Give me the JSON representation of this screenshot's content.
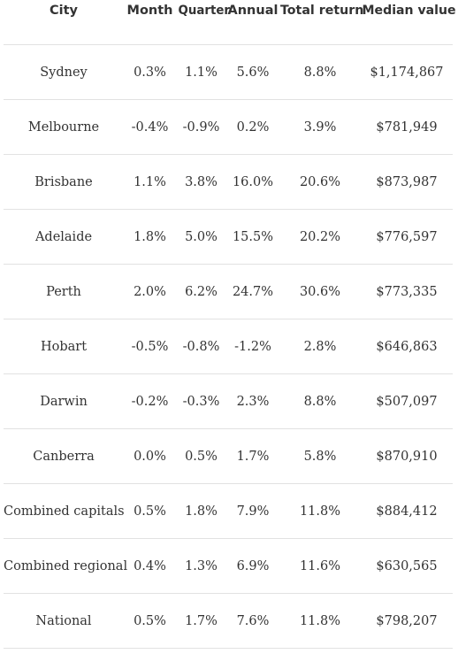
{
  "table": {
    "headers": [
      "City",
      "Month",
      "Quarter",
      "Annual",
      "Total return",
      "Median value"
    ],
    "rows": [
      {
        "city": "Sydney",
        "month": "0.3%",
        "quarter": "1.1%",
        "annual": "5.6%",
        "total_return": "8.8%",
        "median_value": "$1,174,867"
      },
      {
        "city": "Melbourne",
        "month": "-0.4%",
        "quarter": "-0.9%",
        "annual": "0.2%",
        "total_return": "3.9%",
        "median_value": "$781,949"
      },
      {
        "city": "Brisbane",
        "month": "1.1%",
        "quarter": "3.8%",
        "annual": "16.0%",
        "total_return": "20.6%",
        "median_value": "$873,987"
      },
      {
        "city": "Adelaide",
        "month": "1.8%",
        "quarter": "5.0%",
        "annual": "15.5%",
        "total_return": "20.2%",
        "median_value": "$776,597"
      },
      {
        "city": "Perth",
        "month": "2.0%",
        "quarter": "6.2%",
        "annual": "24.7%",
        "total_return": "30.6%",
        "median_value": "$773,335"
      },
      {
        "city": "Hobart",
        "month": "-0.5%",
        "quarter": "-0.8%",
        "annual": "-1.2%",
        "total_return": "2.8%",
        "median_value": "$646,863"
      },
      {
        "city": "Darwin",
        "month": "-0.2%",
        "quarter": "-0.3%",
        "annual": "2.3%",
        "total_return": "8.8%",
        "median_value": "$507,097"
      },
      {
        "city": "Canberra",
        "month": "0.0%",
        "quarter": "0.5%",
        "annual": "1.7%",
        "total_return": "5.8%",
        "median_value": "$870,910"
      },
      {
        "city": "Combined capitals",
        "month": "0.5%",
        "quarter": "1.8%",
        "annual": "7.9%",
        "total_return": "11.8%",
        "median_value": "$884,412"
      },
      {
        "city": "Combined regional",
        "month": "0.4%",
        "quarter": "1.3%",
        "annual": "6.9%",
        "total_return": "11.6%",
        "median_value": "$630,565"
      },
      {
        "city": "National",
        "month": "0.5%",
        "quarter": "1.7%",
        "annual": "7.6%",
        "total_return": "11.8%",
        "median_value": "$798,207"
      }
    ]
  }
}
